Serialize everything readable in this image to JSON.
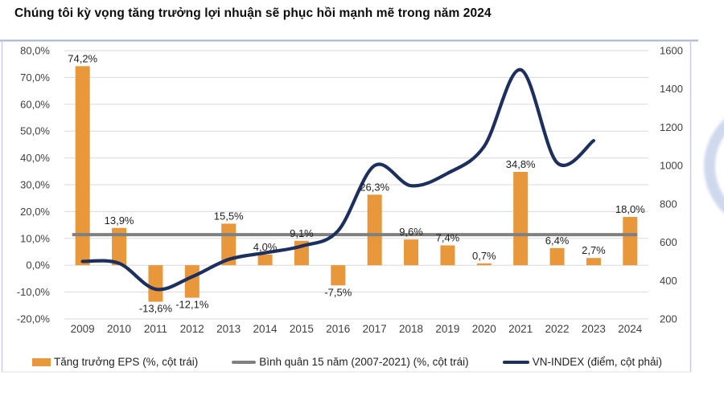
{
  "title": "Chúng tôi kỳ vọng tăng trưởng lợi nhuận sẽ phục hồi mạnh mẽ trong năm 2024",
  "chart_data": {
    "type": "combo",
    "categories": [
      "2009",
      "2010",
      "2011",
      "2012",
      "2013",
      "2014",
      "2015",
      "2016",
      "2017",
      "2018",
      "2019",
      "2020",
      "2021",
      "2022",
      "2023",
      "2024"
    ],
    "series": [
      {
        "name": "Tăng trưởng EPS (%, cột trái)",
        "type": "bar",
        "axis": "left",
        "color": "#E8973B",
        "values": [
          74.2,
          13.9,
          -13.6,
          -12.1,
          15.5,
          4.0,
          9.1,
          -7.5,
          26.3,
          9.6,
          7.4,
          0.7,
          34.8,
          6.4,
          2.7,
          18.0
        ],
        "labels": [
          "74,2%",
          "13,9%",
          "-13,6%",
          "-12,1%",
          "15,5%",
          "4,0%",
          "9,1%",
          "-7,5%",
          "26,3%",
          "9,6%",
          "7,4%",
          "0,7%",
          "34,8%",
          "6,4%",
          "2,7%",
          "18,0%"
        ]
      },
      {
        "name": "Bình quân 15 năm (2007-2021) (%, cột trái)",
        "type": "hline",
        "axis": "left",
        "color": "#808080",
        "value": 11.4
      },
      {
        "name": "VN-INDEX (điểm, cột phải)",
        "type": "line",
        "axis": "right",
        "color": "#1C2F5E",
        "categories": [
          "2009",
          "2010",
          "2011",
          "2012",
          "2013",
          "2014",
          "2015",
          "2016",
          "2017",
          "2018",
          "2019",
          "2020",
          "2021",
          "2022",
          "2023"
        ],
        "values": [
          500,
          490,
          355,
          420,
          510,
          545,
          580,
          660,
          1000,
          895,
          960,
          1100,
          1500,
          1015,
          1130
        ]
      }
    ],
    "left_axis": {
      "min": -20,
      "max": 80,
      "tick_step": 10,
      "tick_labels": [
        "80,0%",
        "70,0%",
        "60,0%",
        "50,0%",
        "40,0%",
        "30,0%",
        "20,0%",
        "10,0%",
        "0,0%",
        "-10,0%",
        "-20,0%"
      ]
    },
    "right_axis": {
      "min": 200,
      "max": 1600,
      "tick_step": 200,
      "tick_labels": [
        "1600",
        "1400",
        "1200",
        "1000",
        "800",
        "600",
        "400",
        "200"
      ]
    },
    "grid": true,
    "legend_position": "bottom"
  },
  "colors": {
    "bar": "#E8973B",
    "avg_line": "#808080",
    "vnindex_line": "#1C2F5E",
    "grid": "#DADADA",
    "border_top": "#A7AFD4",
    "border_side": "#C6CBDF",
    "border_bottom": "#DFE1EA",
    "axis_text": "#3F3F3F",
    "label_text": "#1F1F1F",
    "arc": "#A9BBDF"
  }
}
